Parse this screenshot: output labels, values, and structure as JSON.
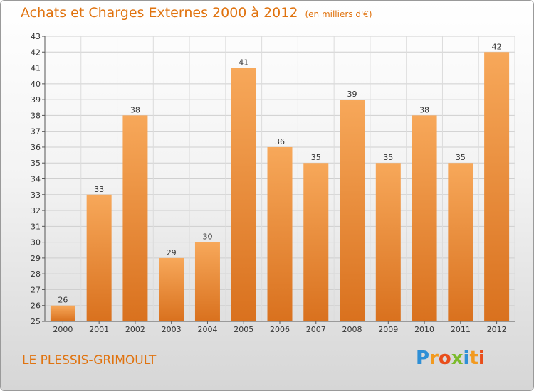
{
  "title": "Achats et Charges Externes 2000 à 2012",
  "subtitle": "(en milliers d'€)",
  "commune": "LE PLESSIS-GRIMOULT",
  "logo": {
    "letters": [
      "P",
      "r",
      "o",
      "x",
      "i",
      "t",
      "i"
    ],
    "colors": [
      "#2e8fd6",
      "#f29a1f",
      "#e94e1b",
      "#7cbb2c",
      "#2e8fd6",
      "#f29a1f",
      "#e94e1b"
    ]
  },
  "colors": {
    "bar_top": "#f7a85a",
    "bar_bottom": "#d9711e",
    "title": "#e0730f"
  },
  "chart_data": {
    "type": "bar",
    "categories": [
      "2000",
      "2001",
      "2002",
      "2003",
      "2004",
      "2005",
      "2006",
      "2007",
      "2008",
      "2009",
      "2010",
      "2011",
      "2012"
    ],
    "values": [
      26,
      33,
      38,
      29,
      30,
      41,
      36,
      35,
      39,
      35,
      38,
      35,
      42
    ],
    "ylim": [
      25,
      43
    ],
    "yticks": [
      25,
      26,
      27,
      28,
      29,
      30,
      31,
      32,
      33,
      34,
      35,
      36,
      37,
      38,
      39,
      40,
      41,
      42,
      43
    ],
    "grid": true
  }
}
